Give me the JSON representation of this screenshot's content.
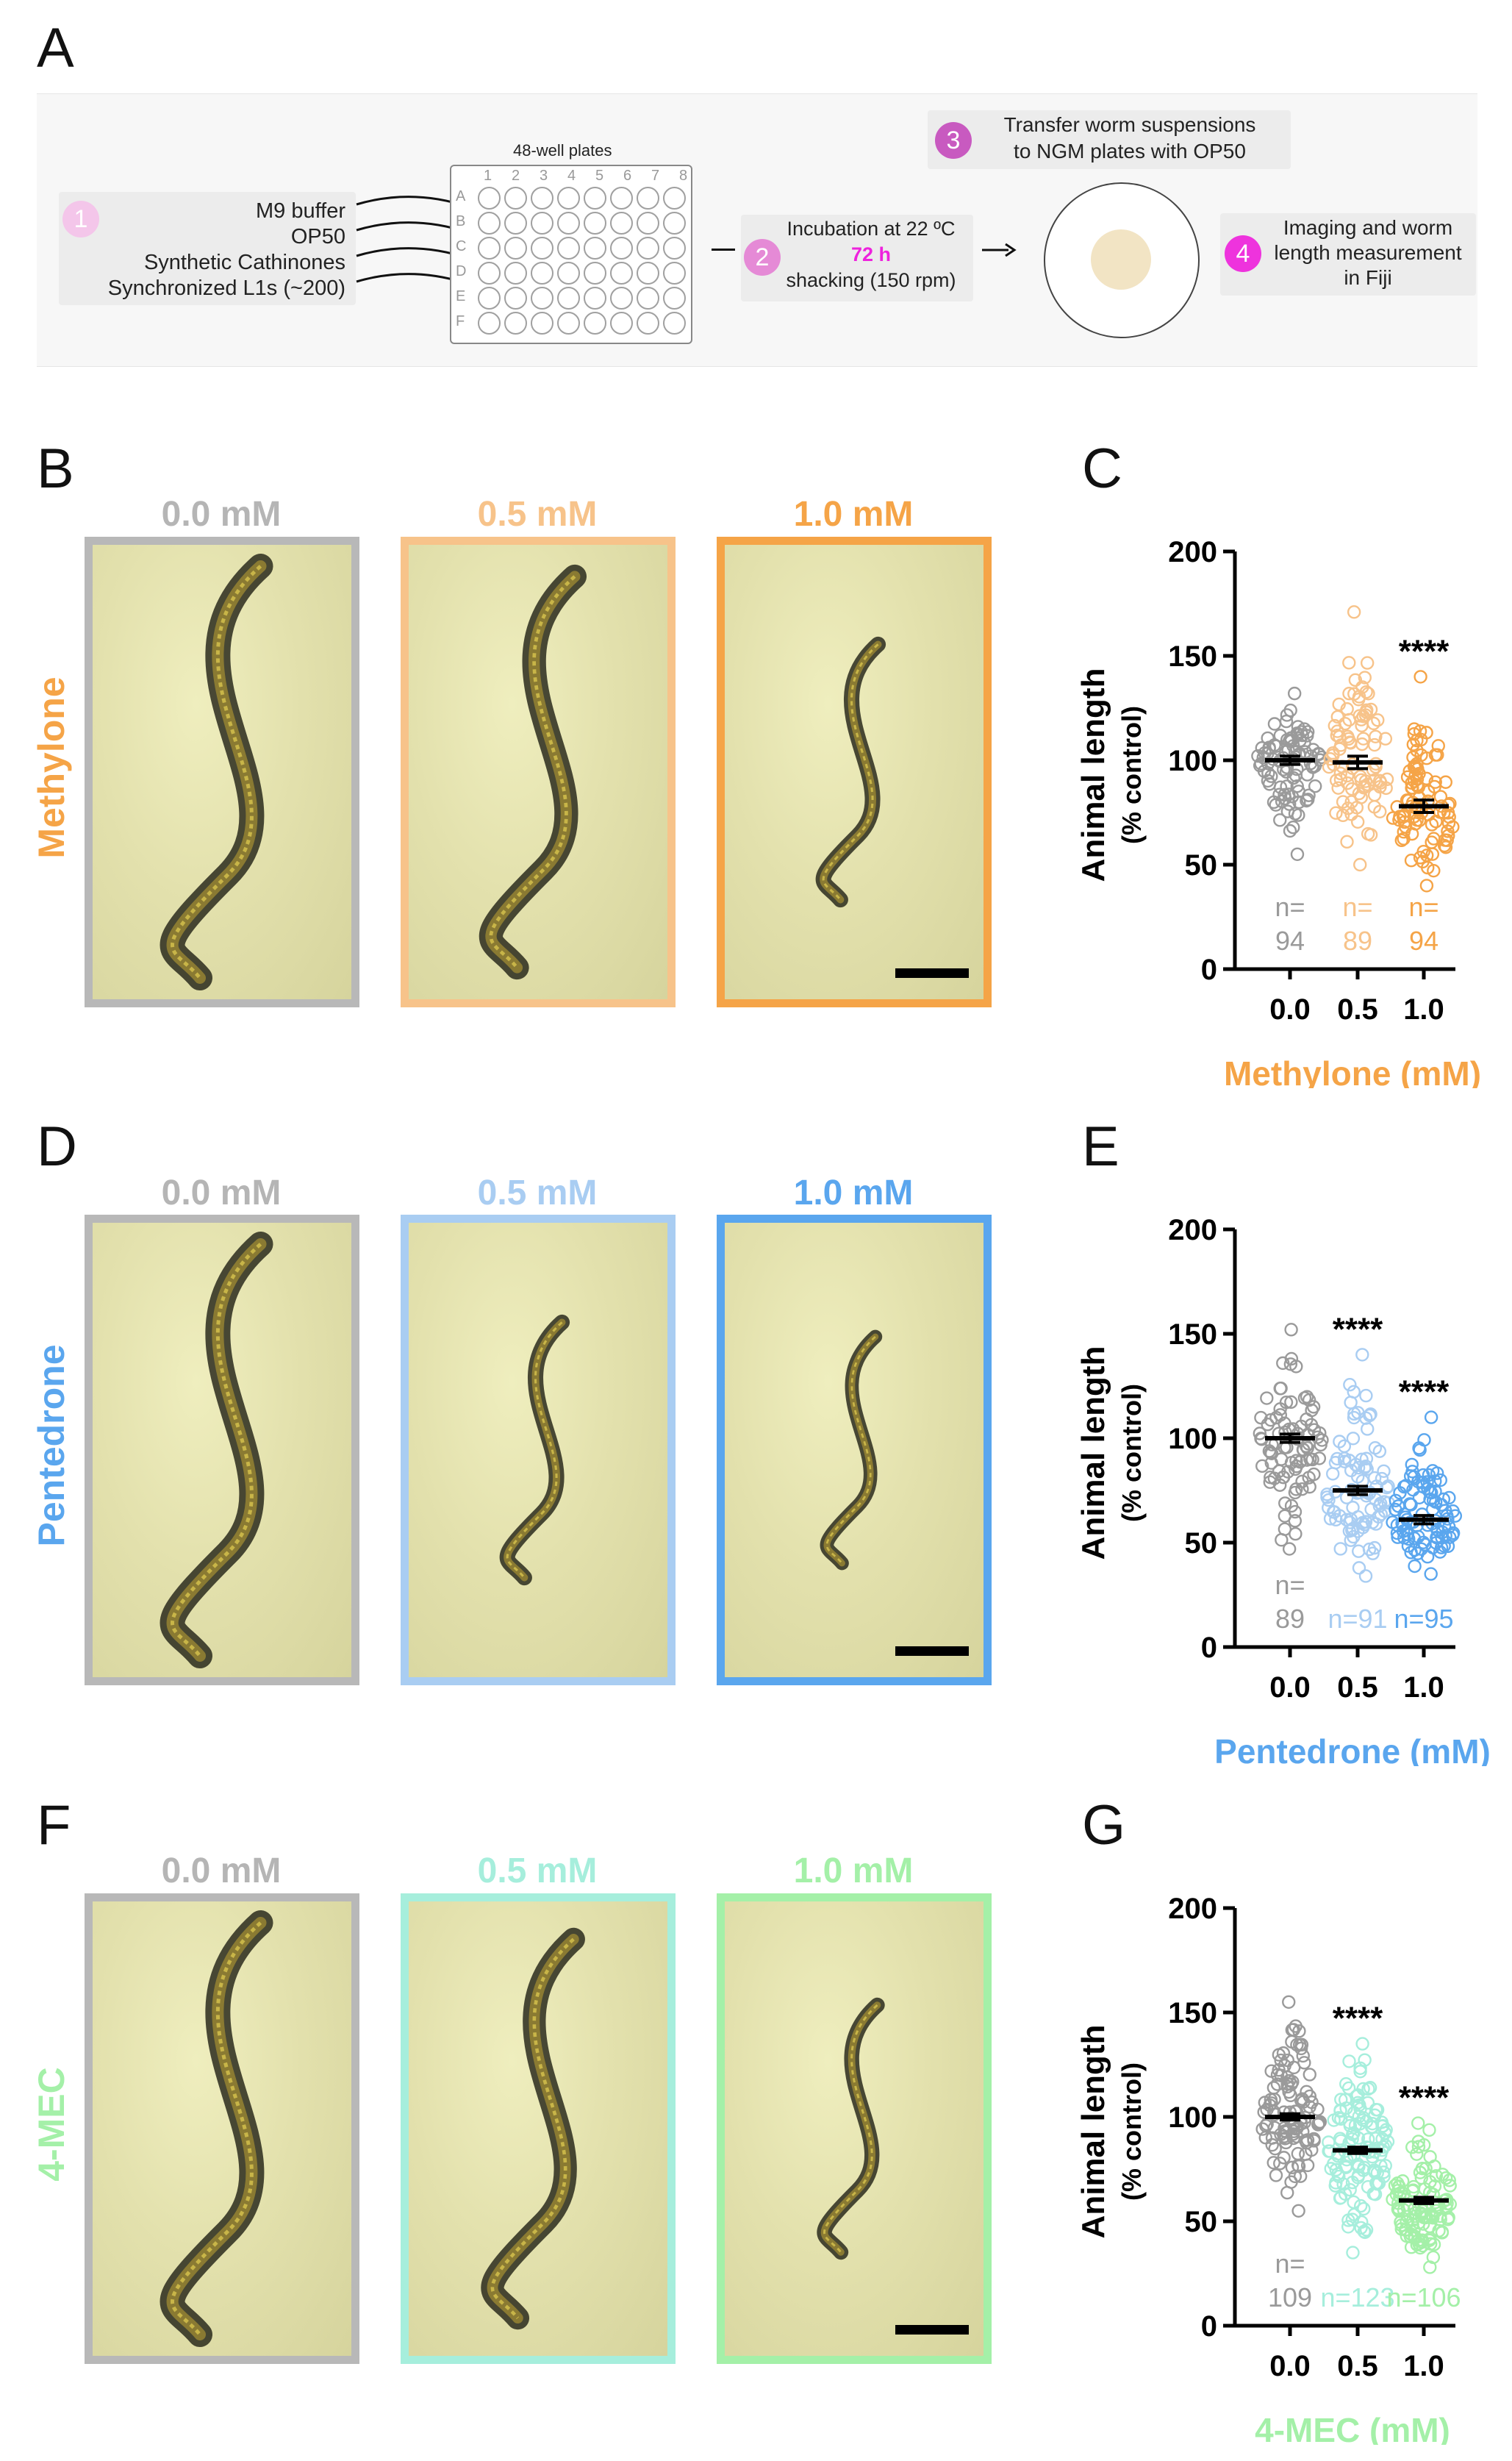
{
  "panels": [
    "A",
    "B",
    "C",
    "D",
    "E",
    "F",
    "G"
  ],
  "workflow": {
    "plate_title": "48-well plates",
    "plate_cols": [
      "1",
      "2",
      "3",
      "4",
      "5",
      "6",
      "7",
      "8"
    ],
    "plate_rows": [
      "A",
      "B",
      "C",
      "D",
      "E",
      "F"
    ],
    "step1": {
      "num": "1",
      "lines": [
        "M9 buffer",
        "OP50",
        "Synthetic Cathinones",
        "Synchronized L1s (~200)"
      ]
    },
    "step2": {
      "num": "2",
      "line1": "Incubation at 22 ºC",
      "line2": "72 h",
      "line3": "shacking (150 rpm)"
    },
    "step3": {
      "num": "3",
      "line1": "Transfer worm suspensions",
      "line2": "to NGM plates with OP50"
    },
    "step4": {
      "num": "4",
      "line1": "Imaging and worm",
      "line2": "length measurement",
      "line3": "in Fiji"
    },
    "colors": {
      "step1": "#f4c6ea",
      "step2": "#e58ad6",
      "step3": "#c85ac0",
      "step4": "#ee33dd",
      "hours": "#ee22dd",
      "dish_center": "#f2e4c4"
    }
  },
  "rows": [
    {
      "compound": "Methylone",
      "color": "#f5a447",
      "concentrations": [
        "0.0 mM",
        "0.5 mM",
        "1.0 mM"
      ],
      "frame_colors": [
        "#b8b8b8",
        "#f7c38a",
        "#f5a447"
      ],
      "conc_colors": [
        "#b5b5b5",
        "#f7c38a",
        "#f5a447"
      ]
    },
    {
      "compound": "Pentedrone",
      "color": "#5aa6ee",
      "concentrations": [
        "0.0 mM",
        "0.5 mM",
        "1.0 mM"
      ],
      "frame_colors": [
        "#b8b8b8",
        "#a9cdf2",
        "#5aa6ee"
      ],
      "conc_colors": [
        "#b5b5b5",
        "#a9cdf2",
        "#5aa6ee"
      ]
    },
    {
      "compound": "4-MEC",
      "color": "#a4f0a8",
      "concentrations": [
        "0.0 mM",
        "0.5 mM",
        "1.0 mM"
      ],
      "frame_colors": [
        "#b8b8b8",
        "#a6eedc",
        "#a4f0a8"
      ],
      "conc_colors": [
        "#b5b5b5",
        "#a6eedc",
        "#a4f0a8"
      ]
    }
  ],
  "chart_data": [
    {
      "type": "scatter",
      "panel": "C",
      "ylabel": "Animal length",
      "ylabel2": "(% control)",
      "xlabel": "Methylone (mM)",
      "xlabel_color": "#f5a447",
      "categories": [
        "0.0",
        "0.5",
        "1.0"
      ],
      "ylim": [
        0,
        200
      ],
      "yticks": [
        0,
        50,
        100,
        150,
        200
      ],
      "means": [
        100,
        99,
        78
      ],
      "sem": [
        2,
        3,
        3
      ],
      "n_labels": [
        [
          "n=",
          "94"
        ],
        [
          "n=",
          "89"
        ],
        [
          "n=",
          "94"
        ]
      ],
      "n": [
        94,
        89,
        94
      ],
      "spread": [
        [
          55,
          132
        ],
        [
          50,
          171
        ],
        [
          40,
          140
        ]
      ],
      "significance": [
        "",
        "",
        "****"
      ],
      "colors": [
        "#9a9a9a",
        "#f7c38a",
        "#f5a447"
      ]
    },
    {
      "type": "scatter",
      "panel": "E",
      "ylabel": "Animal length",
      "ylabel2": "(% control)",
      "xlabel": "Pentedrone (mM)",
      "xlabel_color": "#5aa6ee",
      "categories": [
        "0.0",
        "0.5",
        "1.0"
      ],
      "ylim": [
        0,
        200
      ],
      "yticks": [
        0,
        50,
        100,
        150,
        200
      ],
      "means": [
        100,
        75,
        61
      ],
      "sem": [
        2,
        2,
        2
      ],
      "n_labels": [
        [
          "n=",
          "89"
        ],
        [
          "n=91"
        ],
        [
          "n=95"
        ]
      ],
      "n": [
        89,
        91,
        95
      ],
      "spread": [
        [
          47,
          152
        ],
        [
          34,
          140
        ],
        [
          35,
          110
        ]
      ],
      "significance": [
        "",
        "****",
        "****"
      ],
      "colors": [
        "#9a9a9a",
        "#a9cdf2",
        "#5aa6ee"
      ]
    },
    {
      "type": "scatter",
      "panel": "G",
      "ylabel": "Animal length",
      "ylabel2": "(% control)",
      "xlabel": "4-MEC (mM)",
      "xlabel_color": "#a4f0a8",
      "categories": [
        "0.0",
        "0.5",
        "1.0"
      ],
      "ylim": [
        0,
        200
      ],
      "yticks": [
        0,
        50,
        100,
        150,
        200
      ],
      "means": [
        100,
        84,
        60
      ],
      "sem": [
        1.5,
        1.5,
        1.5
      ],
      "n_labels": [
        [
          "n=",
          "109"
        ],
        [
          "n=123"
        ],
        [
          "n=106"
        ]
      ],
      "n": [
        109,
        123,
        106
      ],
      "spread": [
        [
          55,
          155
        ],
        [
          35,
          135
        ],
        [
          28,
          97
        ]
      ],
      "significance": [
        "",
        "****",
        "****"
      ],
      "colors": [
        "#9a9a9a",
        "#a6eedc",
        "#a4f0a8"
      ]
    }
  ]
}
